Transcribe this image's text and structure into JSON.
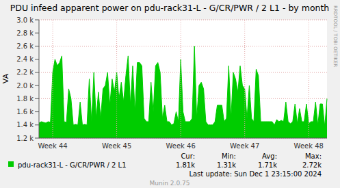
{
  "chart_data": {
    "type": "area",
    "title": "PDU infeed apparent power on pdu-rack31-L - G/CR/PWR / 2 L1 - by month",
    "y_label": "VA",
    "side_text": "RRDTOOL / TOBI OETIKER",
    "footer": "Munin 2.0.75",
    "last_update": "Last update: Sun Dec  1 23:15:00 2024",
    "categories": [
      null,
      null,
      null,
      null,
      null,
      null,
      "Week 44",
      null,
      null,
      null,
      null,
      null,
      null,
      null,
      null,
      null,
      null,
      null,
      null,
      null,
      null,
      null,
      null,
      null,
      null,
      null,
      null,
      null,
      null,
      null,
      null,
      null,
      null,
      null,
      "Week 45",
      null,
      null,
      null,
      null,
      null,
      null,
      null,
      null,
      null,
      null,
      null,
      null,
      null,
      null,
      null,
      null,
      null,
      null,
      null,
      null,
      null,
      null,
      null,
      null,
      null,
      null,
      null,
      "Week 46",
      null,
      null,
      null,
      null,
      null,
      null,
      null,
      null,
      null,
      null,
      null,
      null,
      null,
      null,
      null,
      null,
      null,
      null,
      null,
      null,
      null,
      null,
      null,
      null,
      null,
      null,
      null,
      "Week 47",
      null,
      null,
      null,
      null,
      null,
      null,
      null,
      null,
      null,
      null,
      null,
      null,
      null,
      null,
      null,
      null,
      null,
      null,
      null,
      null,
      null,
      null,
      null,
      null,
      null,
      null,
      null,
      "Week 48",
      null,
      null,
      null,
      null,
      null,
      null,
      null,
      null
    ],
    "series": [
      {
        "name": "pdu-rack31-L - G/CR/PWR / 2 L1",
        "color": "#00cc00",
        "values": [
          1430,
          1450,
          1440,
          1430,
          1450,
          1440,
          2200,
          2400,
          2300,
          2350,
          2450,
          1450,
          1440,
          1950,
          1800,
          1400,
          1410,
          1400,
          1750,
          1400,
          1410,
          1400,
          2100,
          1450,
          2200,
          1500,
          1900,
          1500,
          1950,
          2000,
          2200,
          1700,
          2100,
          1900,
          2200,
          1800,
          2050,
          1750,
          2150,
          2450,
          1700,
          2300,
          1600,
          2350,
          2350,
          2300,
          1500,
          1450,
          1450,
          2050,
          1600,
          2300,
          2350,
          2200,
          1500,
          1700,
          1450,
          1450,
          1400,
          1420,
          1600,
          1450,
          2400,
          1600,
          1450,
          1450,
          1450,
          1500,
          2600,
          1500,
          2000,
          2050,
          1950,
          1450,
          1400,
          1400,
          1400,
          1450,
          1700,
          1700,
          1700,
          1450,
          1500,
          2300,
          1500,
          2200,
          2100,
          1900,
          2300,
          2000,
          1950,
          1500,
          2000,
          1500,
          1450,
          2250,
          2150,
          1450,
          1450,
          1450,
          1450,
          1450,
          1450,
          1400,
          1480,
          1450,
          1470,
          1450,
          1750,
          1450,
          1420,
          1450,
          1720,
          1420,
          1650,
          1450,
          1450,
          1720,
          1420,
          1450,
          1450,
          1750,
          1400,
          1720,
          1720,
          1380,
          1800
        ]
      }
    ],
    "ylim": [
      1200,
      3000
    ],
    "yticks": [
      {
        "value": 1200,
        "label": "1.2 k"
      },
      {
        "value": 1400,
        "label": "1.4 k"
      },
      {
        "value": 1600,
        "label": "1.6 k"
      },
      {
        "value": 1800,
        "label": "1.8 k"
      },
      {
        "value": 2000,
        "label": "2.0 k"
      },
      {
        "value": 2200,
        "label": "2.2 k"
      },
      {
        "value": 2400,
        "label": "2.4 k"
      },
      {
        "value": 2600,
        "label": "2.6 k"
      },
      {
        "value": 2800,
        "label": "2.8 k"
      },
      {
        "value": 3000,
        "label": "3.0 k"
      }
    ],
    "grid": true,
    "stats": [
      {
        "name": "Cur:",
        "value": 1810,
        "label": "1.81k"
      },
      {
        "name": "Min:",
        "value": 1310,
        "label": "1.31k"
      },
      {
        "name": "Avg:",
        "value": 1710,
        "label": "1.71k"
      },
      {
        "name": "Max:",
        "value": 2720,
        "label": "2.72k"
      }
    ]
  }
}
